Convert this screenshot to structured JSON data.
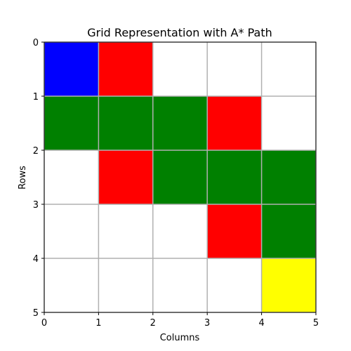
{
  "chart_data": {
    "type": "heatmap",
    "title": "Grid Representation with A* Path",
    "xlabel": "Columns",
    "ylabel": "Rows",
    "xlim": [
      0,
      5
    ],
    "ylim": [
      0,
      5
    ],
    "y_inverted": true,
    "x_ticks": [
      "0",
      "1",
      "2",
      "3",
      "4",
      "5"
    ],
    "y_ticks": [
      "0",
      "1",
      "2",
      "3",
      "4",
      "5"
    ],
    "grid": true,
    "legend": "none",
    "cell_colors": {
      "start": "#0000ff",
      "obstacle": "#ff0000",
      "path": "#008000",
      "goal": "#ffff00",
      "empty": "#ffffff"
    },
    "grid_cells": [
      [
        "start",
        "obstacle",
        "empty",
        "empty",
        "empty"
      ],
      [
        "path",
        "path",
        "path",
        "obstacle",
        "empty"
      ],
      [
        "empty",
        "obstacle",
        "path",
        "path",
        "path"
      ],
      [
        "empty",
        "empty",
        "empty",
        "obstacle",
        "path"
      ],
      [
        "empty",
        "empty",
        "empty",
        "empty",
        "goal"
      ]
    ]
  }
}
